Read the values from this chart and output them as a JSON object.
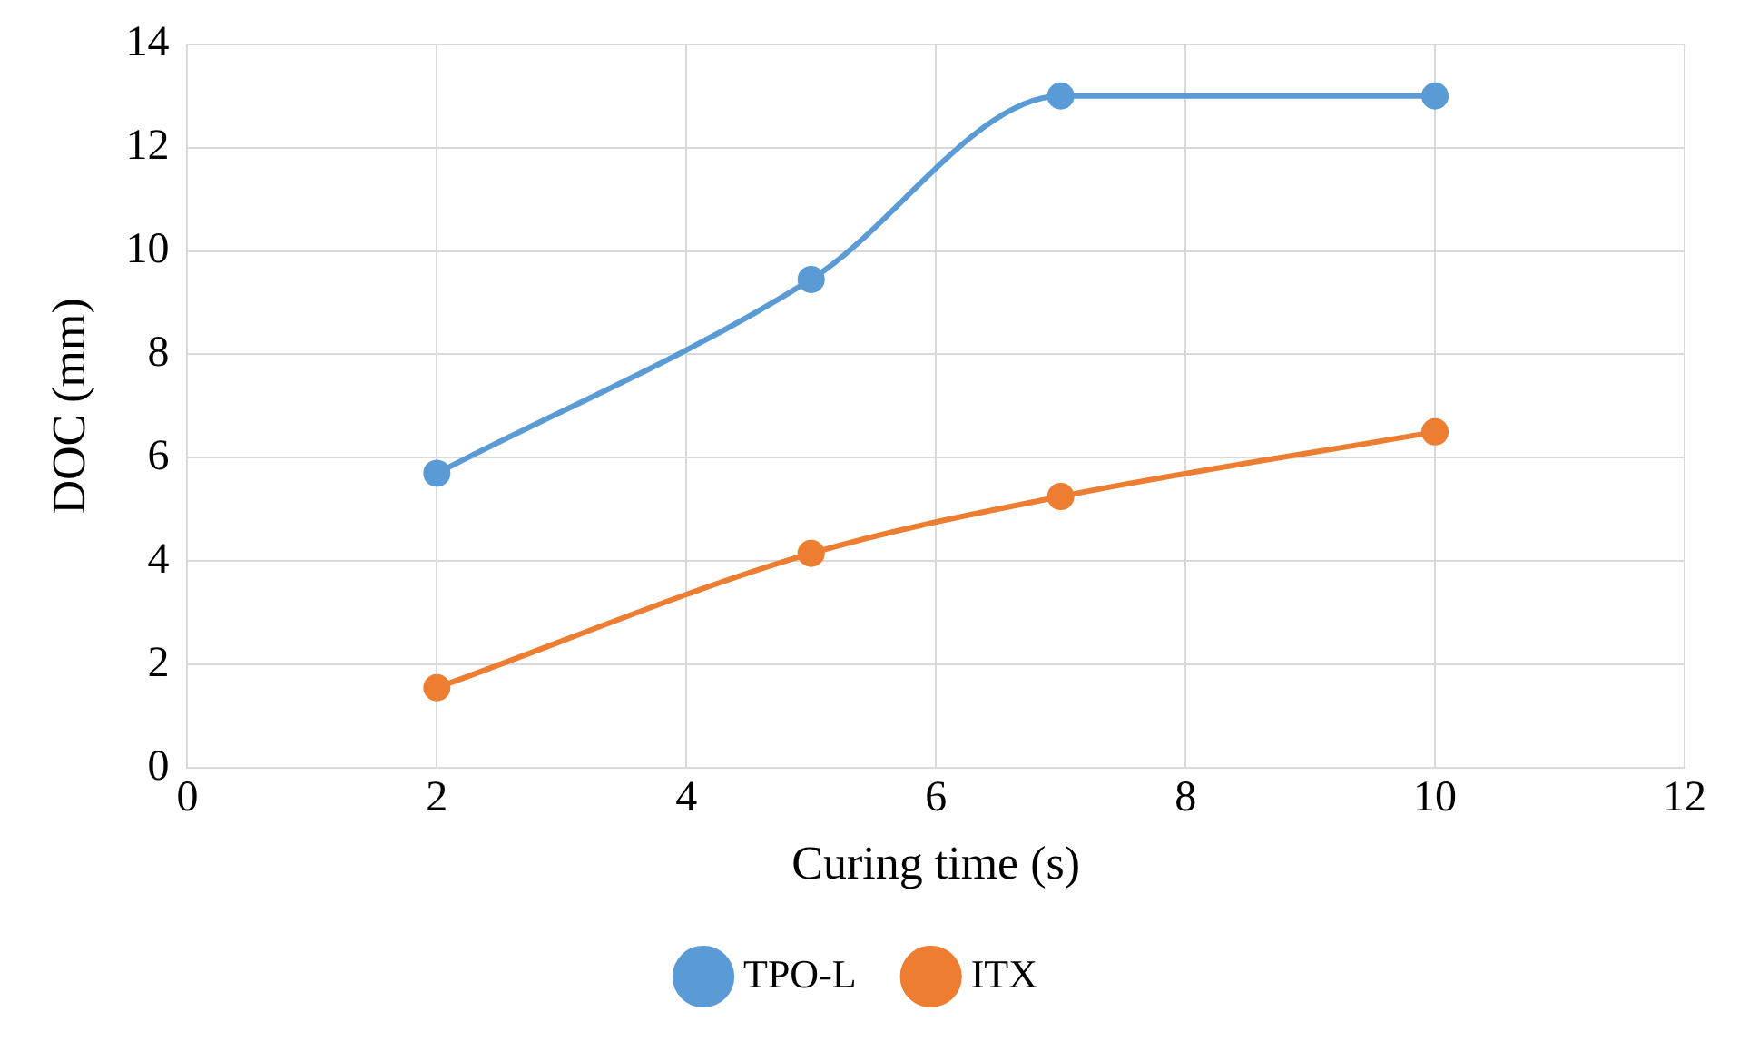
{
  "chart_data": {
    "type": "line",
    "xlabel": "Curing time (s)",
    "ylabel": "DOC (mm)",
    "x": [
      2,
      5,
      7,
      10
    ],
    "series": [
      {
        "name": "TPO-L",
        "color": "#5b9bd5",
        "values": [
          5.7,
          9.45,
          13,
          13
        ]
      },
      {
        "name": "ITX",
        "color": "#ed7d31",
        "values": [
          1.55,
          4.15,
          5.25,
          6.5
        ]
      }
    ],
    "xlim": [
      0,
      12
    ],
    "xticks": [
      0,
      2,
      4,
      6,
      8,
      10,
      12
    ],
    "ylim": [
      0,
      14
    ],
    "yticks": [
      0,
      2,
      4,
      6,
      8,
      10,
      12,
      14
    ],
    "grid": true,
    "legend": "bottom",
    "marker": "circle",
    "line_style": "solid"
  }
}
